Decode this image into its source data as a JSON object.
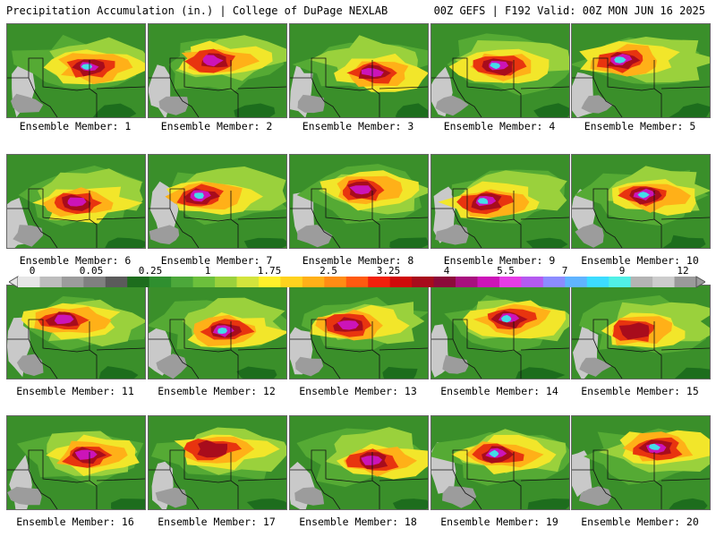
{
  "header": {
    "title_left": "Precipitation Accumulation (in.) | College of DuPage NEXLAB",
    "title_right": "00Z GEFS | F192 Valid: 00Z MON JUN 16 2025"
  },
  "colorbar": {
    "tick_labels": [
      "0",
      "0.05",
      "0.25",
      "1",
      "1.75",
      "2.5",
      "3.25",
      "4",
      "5.5",
      "7",
      "9",
      "12"
    ],
    "colors": [
      "#e6e6e6",
      "#bdbdbd",
      "#9c9c9c",
      "#808080",
      "#5b5b5b",
      "#1d6d1d",
      "#2f8f2f",
      "#4ca83a",
      "#6cc03c",
      "#9ad13c",
      "#d3e43c",
      "#fff02a",
      "#ffd21e",
      "#ffb018",
      "#ff8c14",
      "#ff5a10",
      "#f2200c",
      "#d00a0a",
      "#a80c1c",
      "#8c0a3a",
      "#a8107e",
      "#cc14b8",
      "#e63ce6",
      "#b45af0",
      "#8c8cff",
      "#60b4ff",
      "#3cdcff",
      "#50f0e6",
      "#b4b4b4",
      "#cccccc",
      "#9a9a9a"
    ]
  },
  "panels": [
    {
      "label": "Ensemble Member: 1",
      "peak": "high"
    },
    {
      "label": "Ensemble Member: 2",
      "peak": "mod"
    },
    {
      "label": "Ensemble Member: 3",
      "peak": "mod"
    },
    {
      "label": "Ensemble Member: 4",
      "peak": "high"
    },
    {
      "label": "Ensemble Member: 5",
      "peak": "high"
    },
    {
      "label": "Ensemble Member: 6",
      "peak": "mod"
    },
    {
      "label": "Ensemble Member: 7",
      "peak": "high"
    },
    {
      "label": "Ensemble Member: 8",
      "peak": "mod"
    },
    {
      "label": "Ensemble Member: 9",
      "peak": "high"
    },
    {
      "label": "Ensemble Member: 10",
      "peak": "high"
    },
    {
      "label": "Ensemble Member: 11",
      "peak": "mod"
    },
    {
      "label": "Ensemble Member: 12",
      "peak": "high"
    },
    {
      "label": "Ensemble Member: 13",
      "peak": "mod"
    },
    {
      "label": "Ensemble Member: 14",
      "peak": "high"
    },
    {
      "label": "Ensemble Member: 15",
      "peak": "low"
    },
    {
      "label": "Ensemble Member: 16",
      "peak": "mod"
    },
    {
      "label": "Ensemble Member: 17",
      "peak": "low"
    },
    {
      "label": "Ensemble Member: 18",
      "peak": "mod"
    },
    {
      "label": "Ensemble Member: 19",
      "peak": "high"
    },
    {
      "label": "Ensemble Member: 20",
      "peak": "high"
    }
  ]
}
